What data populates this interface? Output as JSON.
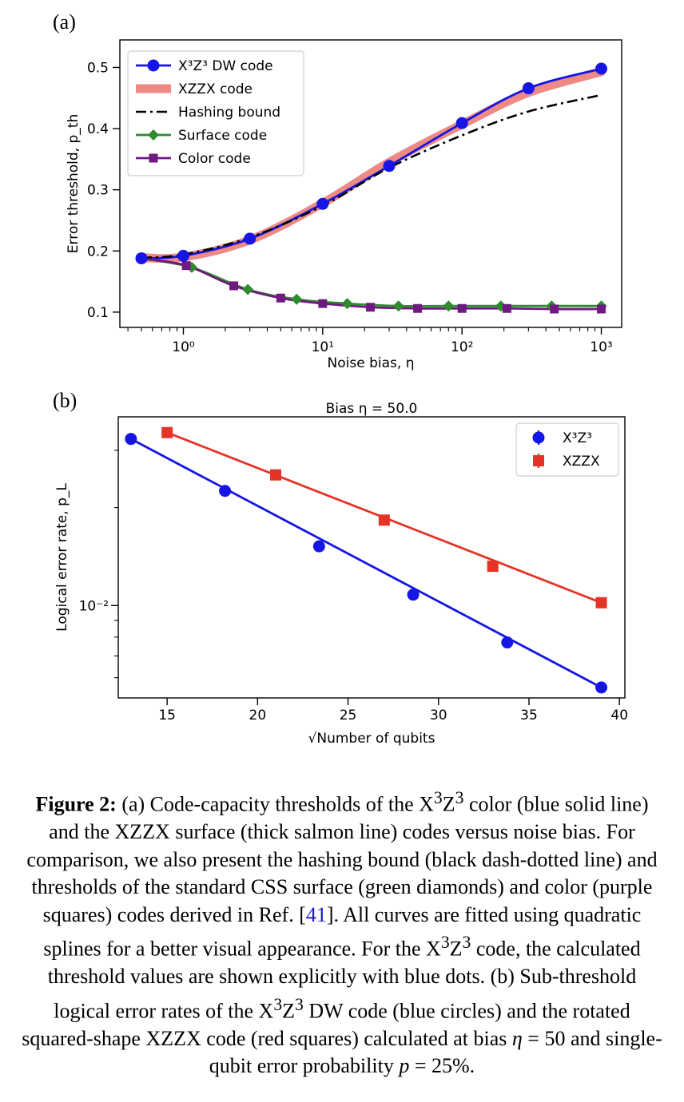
{
  "chart_data": [
    {
      "type": "line",
      "panel_label": "(a)",
      "title": "",
      "xlabel": "Noise bias, η",
      "xscale": "log",
      "xlim": [
        0.35,
        1400
      ],
      "ylabel": "Error threshold, p_th",
      "ylim": [
        0.075,
        0.545
      ],
      "x_ticks": [
        {
          "value": 1,
          "label": "10⁰"
        },
        {
          "value": 10,
          "label": "10¹"
        },
        {
          "value": 100,
          "label": "10²"
        },
        {
          "value": 1000,
          "label": "10³"
        }
      ],
      "y_ticks": [
        0.1,
        0.2,
        0.3,
        0.4,
        0.5
      ],
      "legend_position": "top-left",
      "series": [
        {
          "name": "X³Z³ DW code",
          "style": "line-circle",
          "color": "#1515e6",
          "x": [
            0.5,
            1,
            3,
            10,
            30,
            100,
            300,
            1000
          ],
          "y": [
            0.188,
            0.192,
            0.22,
            0.277,
            0.339,
            0.409,
            0.466,
            0.498
          ]
        },
        {
          "name": "XZZX code",
          "style": "thick",
          "color": "#ee8a84",
          "x": [
            0.5,
            1,
            3,
            10,
            30,
            100,
            300,
            1000
          ],
          "y": [
            0.189,
            0.19,
            0.218,
            0.278,
            0.345,
            0.407,
            0.459,
            0.493
          ]
        },
        {
          "name": "Hashing bound",
          "style": "dashdot",
          "color": "#000000",
          "x": [
            0.5,
            1,
            3,
            10,
            30,
            100,
            300,
            1000
          ],
          "y": [
            0.189,
            0.194,
            0.222,
            0.274,
            0.336,
            0.389,
            0.428,
            0.455
          ]
        },
        {
          "name": "Surface code",
          "style": "line-diamond",
          "color": "#2e8b2e",
          "x": [
            0.5,
            1.15,
            2.9,
            6.5,
            15,
            35,
            80,
            190,
            440,
            1000
          ],
          "y": [
            0.188,
            0.173,
            0.137,
            0.121,
            0.114,
            0.11,
            0.11,
            0.11,
            0.11,
            0.11
          ]
        },
        {
          "name": "Color code",
          "style": "line-square",
          "color": "#6f1a80",
          "x": [
            0.5,
            1.05,
            2.3,
            5,
            10,
            22,
            48,
            100,
            210,
            460,
            1000
          ],
          "y": [
            0.188,
            0.176,
            0.143,
            0.123,
            0.114,
            0.108,
            0.106,
            0.106,
            0.106,
            0.105,
            0.105
          ]
        }
      ]
    },
    {
      "type": "scatter",
      "panel_label": "(b)",
      "title": "Bias η = 50.0",
      "xlabel": "√Number of qubits",
      "xlim": [
        12.3,
        40.3
      ],
      "x_ticks": [
        15,
        20,
        25,
        30,
        35,
        40
      ],
      "ylabel": "Logical error rate, p_L",
      "yscale": "log",
      "ylim": [
        0.0052,
        0.038
      ],
      "y_ticks": [
        {
          "value": 0.01,
          "label": "10⁻²"
        }
      ],
      "legend_position": "top-right",
      "series": [
        {
          "name": "X³Z³",
          "marker": "circle",
          "color": "#1515e6",
          "x": [
            13,
            18.2,
            23.4,
            28.6,
            33.8,
            39
          ],
          "y": [
            0.0325,
            0.0225,
            0.0152,
            0.0108,
            0.0077,
            0.0056
          ],
          "fit_line": true
        },
        {
          "name": "XZZX",
          "marker": "square",
          "color": "#e53326",
          "x": [
            15,
            21,
            27,
            33,
            39
          ],
          "y": [
            0.034,
            0.0252,
            0.0183,
            0.0132,
            0.0102
          ],
          "fit_line": true
        }
      ]
    }
  ],
  "caption": {
    "label": "Figure 2:",
    "part1": " (a) Code-capacity thresholds of the X",
    "part2": "Z",
    "part3": " color (blue solid line) and the XZZX surface (thick salmon line) codes versus noise bias. For comparison, we also present the hashing bound (black dash-dotted line) and thresholds of the standard CSS surface (green diamonds) and color (purple squares) codes derived in Ref. [",
    "ref": "41",
    "part4": "]. All curves are fitted using quadratic splines for a better visual appearance. For the X",
    "part5": "Z",
    "part6": " code, the calculated threshold values are shown explicitly with blue dots. (b) Sub-threshold logical error rates of the X",
    "part7": "Z",
    "part8": " DW code (blue circles) and the rotated squared-shape XZZX code (red squares) calculated at bias ",
    "eta": "η",
    "part9": " = 50 and single-qubit error probability ",
    "p": "p",
    "part10": " = 25%.",
    "sup": "3"
  }
}
